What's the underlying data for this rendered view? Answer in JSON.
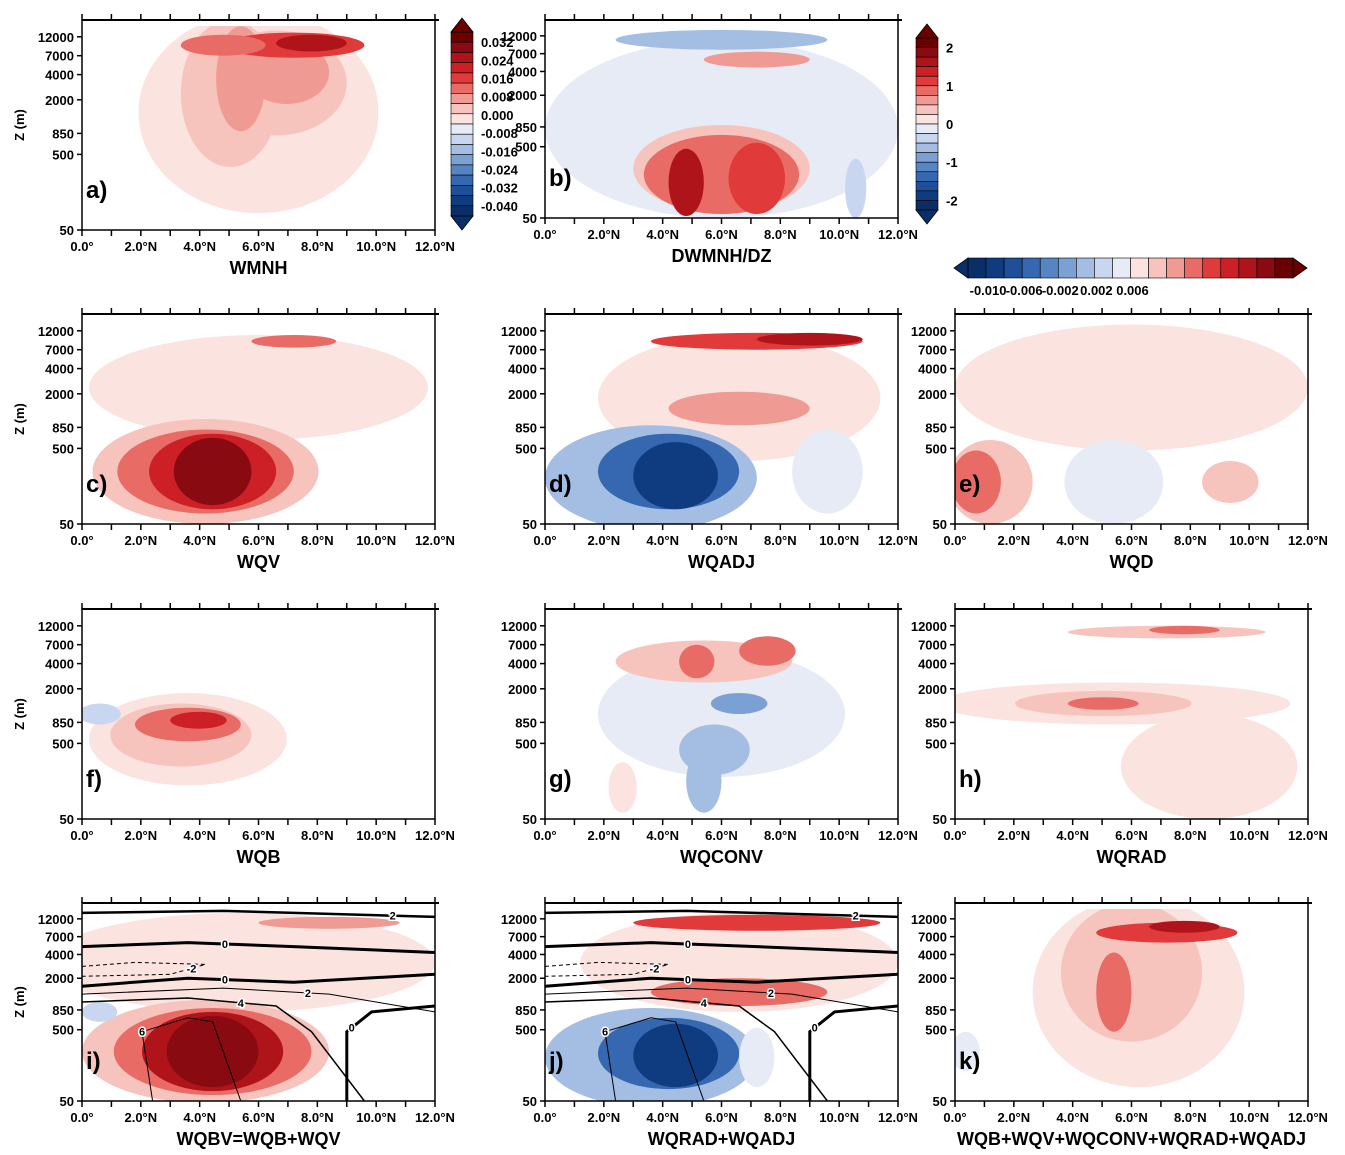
{
  "chart_data": {
    "type": "heatmap",
    "x_ticks": [
      "0.0°",
      "2.0°N",
      "4.0°N",
      "6.0°N",
      "8.0°N",
      "10.0°N",
      "12.0°N"
    ],
    "y_ticks": [
      "12000",
      "7000",
      "4000",
      "2000",
      "850",
      "500",
      "50"
    ],
    "ylabel": "Z (m)",
    "panels": [
      {
        "tag": "a)",
        "title": "WMNH",
        "ylabel": "Z (m)",
        "colorbar": "cb1"
      },
      {
        "tag": "b)",
        "title": "DWMNH/DZ",
        "ylabel": "",
        "colorbar": "cb2"
      },
      {
        "tag": "c)",
        "title": "WQV",
        "ylabel": "Z (m)",
        "colorbar": "cb3"
      },
      {
        "tag": "d)",
        "title": "WQADJ",
        "ylabel": "",
        "colorbar": "cb3"
      },
      {
        "tag": "e)",
        "title": "WQD",
        "ylabel": "",
        "colorbar": "cb3"
      },
      {
        "tag": "f)",
        "title": "WQB",
        "ylabel": "Z (m)",
        "colorbar": "cb3"
      },
      {
        "tag": "g)",
        "title": "WQCONV",
        "ylabel": "",
        "colorbar": "cb3"
      },
      {
        "tag": "h)",
        "title": "WQRAD",
        "ylabel": "",
        "colorbar": "cb3"
      },
      {
        "tag": "i)",
        "title": "WQBV=WQB+WQV",
        "ylabel": "Z (m)",
        "colorbar": "cb3",
        "contour_labels": [
          "0",
          "-2",
          "0",
          "2",
          "4",
          "6",
          "0",
          "2"
        ]
      },
      {
        "tag": "j)",
        "title": "WQRAD+WQADJ",
        "ylabel": "",
        "colorbar": "cb3",
        "contour_labels": [
          "0",
          "-2",
          "0",
          "2",
          "4",
          "6",
          "0",
          "2"
        ]
      },
      {
        "tag": "k)",
        "title": "WQB+WQV+WQCONV+WQRAD+WQADJ",
        "ylabel": "",
        "colorbar": "cb3"
      }
    ],
    "colorbars": {
      "cb1": {
        "labels": [
          "0.032",
          "0.024",
          "0.016",
          "0.008",
          "0.000",
          "-0.008",
          "-0.016",
          "-0.024",
          "-0.032",
          "-0.040"
        ]
      },
      "cb2": {
        "labels": [
          "2",
          "1",
          "0",
          "-1",
          "-2"
        ]
      },
      "cb3": {
        "labels": [
          "-0.010",
          "-0.006",
          "-0.002",
          "0.002",
          "0.006"
        ]
      }
    },
    "palette": {
      "pos": [
        "#fbe3e0",
        "#f6c3bd",
        "#ef9a93",
        "#e86b66",
        "#e03a3a",
        "#cc1f26",
        "#b0141b",
        "#8a0a12",
        "#6b0000"
      ],
      "neg": [
        "#e6ebf6",
        "#c9d6ef",
        "#a3bde3",
        "#7ba0d4",
        "#5585c3",
        "#3568b0",
        "#1f4f98",
        "#0f3c80",
        "#0a2f68"
      ]
    }
  }
}
